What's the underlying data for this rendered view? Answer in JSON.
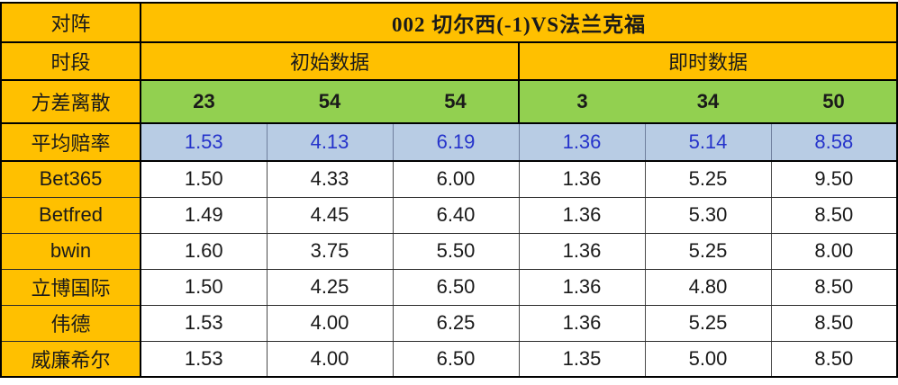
{
  "colors": {
    "header_bg": "#FFC000",
    "variance_bg": "#92D050",
    "average_bg": "#B8CCE4",
    "average_text": "#2533CB",
    "border_black": "#000000"
  },
  "chart_data": {
    "type": "table",
    "title": "002 切尔西(-1)VS法兰克福",
    "title_row": {
      "label": "对阵",
      "value": "002 切尔西(-1)VS法兰克福"
    },
    "period_row": {
      "label": "时段",
      "groups": [
        "初始数据",
        "即时数据"
      ]
    },
    "variance_row": {
      "label": "方差离散",
      "values": [
        "23",
        "54",
        "54",
        "3",
        "34",
        "50"
      ]
    },
    "average_row": {
      "label": "平均赔率",
      "values": [
        "1.53",
        "4.13",
        "6.19",
        "1.36",
        "5.14",
        "8.58"
      ]
    },
    "bookmaker_rows": [
      {
        "label": "Bet365",
        "values": [
          "1.50",
          "4.33",
          "6.00",
          "1.36",
          "5.25",
          "9.50"
        ]
      },
      {
        "label": "Betfred",
        "values": [
          "1.49",
          "4.45",
          "6.40",
          "1.36",
          "5.30",
          "8.50"
        ]
      },
      {
        "label": "bwin",
        "values": [
          "1.60",
          "3.75",
          "5.50",
          "1.36",
          "5.25",
          "8.00"
        ]
      },
      {
        "label": "立博国际",
        "values": [
          "1.50",
          "4.25",
          "6.50",
          "1.36",
          "4.80",
          "8.50"
        ]
      },
      {
        "label": "伟德",
        "values": [
          "1.53",
          "4.00",
          "6.25",
          "1.36",
          "5.25",
          "8.50"
        ]
      },
      {
        "label": "威廉希尔",
        "values": [
          "1.53",
          "4.00",
          "6.50",
          "1.35",
          "5.00",
          "8.50"
        ]
      }
    ]
  }
}
